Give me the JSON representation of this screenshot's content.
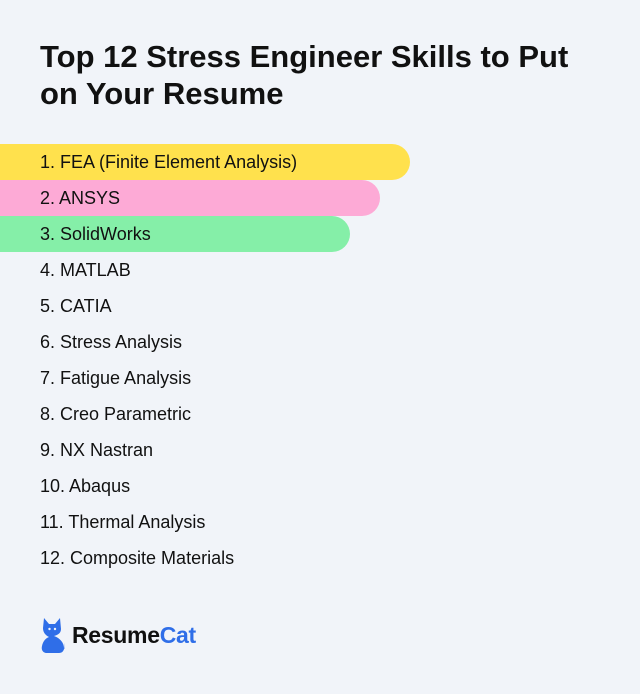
{
  "title": "Top 12 Stress Engineer Skills to Put on Your Resume",
  "skills": [
    {
      "label": "1. FEA (Finite Element Analysis)",
      "highlight": "#ffe14d",
      "bar_width_fraction": 0.64
    },
    {
      "label": "2. ANSYS",
      "highlight": "#fdaad6",
      "bar_width_fraction": 0.594
    },
    {
      "label": "3. SolidWorks",
      "highlight": "#85efa8",
      "bar_width_fraction": 0.547
    },
    {
      "label": "4. MATLAB"
    },
    {
      "label": "5. CATIA"
    },
    {
      "label": "6. Stress Analysis"
    },
    {
      "label": "7. Fatigue Analysis"
    },
    {
      "label": "8. Creo Parametric"
    },
    {
      "label": "9. NX Nastran"
    },
    {
      "label": "10. Abaqus"
    },
    {
      "label": "11. Thermal Analysis"
    },
    {
      "label": "12. Composite Materials"
    }
  ],
  "brand": {
    "part1": "Resume",
    "part2": "Cat",
    "logo_icon": "cat-icon",
    "accent": "#2f6ee8"
  }
}
